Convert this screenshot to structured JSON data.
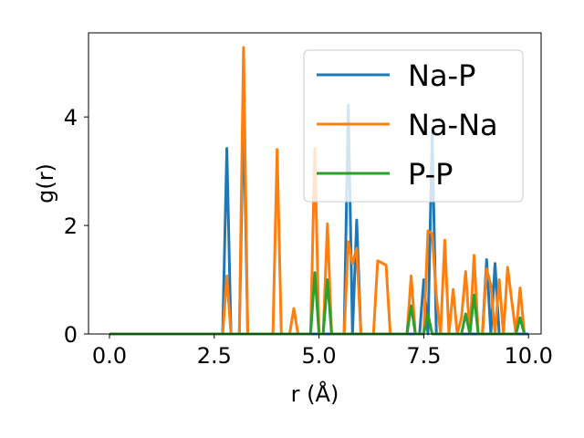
{
  "chart_data": {
    "type": "line",
    "xlabel": "r (Å)",
    "ylabel": "g(r)",
    "xlim": [
      -0.5,
      10.3
    ],
    "ylim": [
      0,
      5.55
    ],
    "xticks": [
      0.0,
      2.5,
      5.0,
      7.5,
      10.0
    ],
    "xtick_labels": [
      "0.0",
      "2.5",
      "5.0",
      "7.5",
      "10.0"
    ],
    "yticks": [
      0,
      2,
      4
    ],
    "ytick_labels": [
      "0",
      "2",
      "4"
    ],
    "grid": false,
    "legend": "top-right",
    "series": [
      {
        "name": "Na-P",
        "color": "#1f77b4",
        "x": [
          0,
          2.7,
          2.8,
          2.9,
          3.0,
          3.1,
          3.2,
          3.3,
          5.6,
          5.7,
          5.8,
          5.9,
          6.0,
          7.1,
          7.2,
          7.3,
          7.4,
          7.5,
          7.6,
          7.7,
          7.8,
          7.9,
          8.9,
          9.0,
          9.1,
          9.2,
          9.3,
          9.4,
          10.0
        ],
        "y": [
          0,
          0,
          3.42,
          0,
          0,
          0,
          4.2,
          0,
          0,
          4.22,
          0,
          2.1,
          0,
          0,
          0,
          0,
          0,
          1.0,
          0,
          3.7,
          0,
          0,
          0,
          1.37,
          0,
          1.3,
          0,
          0,
          0
        ]
      },
      {
        "name": "Na-Na",
        "color": "#ff7f0e",
        "x": [
          0,
          2.7,
          2.8,
          2.9,
          3.0,
          3.1,
          3.2,
          3.3,
          3.9,
          4.0,
          4.1,
          4.3,
          4.4,
          4.5,
          4.8,
          4.9,
          5.0,
          5.1,
          5.2,
          5.3,
          5.6,
          5.7,
          5.8,
          5.9,
          6.0,
          6.3,
          6.4,
          6.6,
          6.7,
          7.1,
          7.2,
          7.3,
          7.5,
          7.6,
          7.7,
          7.8,
          7.9,
          8.0,
          8.1,
          8.2,
          8.3,
          8.4,
          8.5,
          8.6,
          8.7,
          8.8,
          8.9,
          9.0,
          9.1,
          9.2,
          9.3,
          9.4,
          9.5,
          9.6,
          9.7,
          9.8,
          9.9
        ],
        "y": [
          0,
          0,
          1.07,
          0,
          0,
          0,
          5.28,
          0,
          0,
          3.4,
          0,
          0,
          0.47,
          0,
          0,
          3.42,
          0,
          0,
          2.03,
          0,
          0,
          1.7,
          1.3,
          1.58,
          0,
          0,
          1.35,
          1.27,
          0,
          0,
          1.07,
          0,
          0,
          1.9,
          1.85,
          0.7,
          0,
          1.73,
          0,
          0.82,
          0,
          0.3,
          1.15,
          0,
          1.45,
          0,
          0,
          1.2,
          0.9,
          0,
          1.0,
          0,
          1.23,
          0.6,
          0,
          0.85,
          0
        ]
      },
      {
        "name": "P-P",
        "color": "#2ca02c",
        "x": [
          0,
          4.8,
          4.9,
          5.0,
          5.1,
          5.2,
          5.3,
          7.1,
          7.2,
          7.3,
          7.5,
          7.6,
          7.7,
          7.8,
          8.4,
          8.5,
          8.6,
          8.7,
          8.8,
          8.9,
          9.7,
          9.8,
          9.9
        ],
        "y": [
          0,
          0,
          1.13,
          0,
          0,
          1.0,
          0,
          0,
          0.52,
          0,
          0,
          0.37,
          0,
          0,
          0,
          0.37,
          0,
          0.72,
          0,
          0,
          0,
          0.3,
          0
        ]
      }
    ]
  }
}
